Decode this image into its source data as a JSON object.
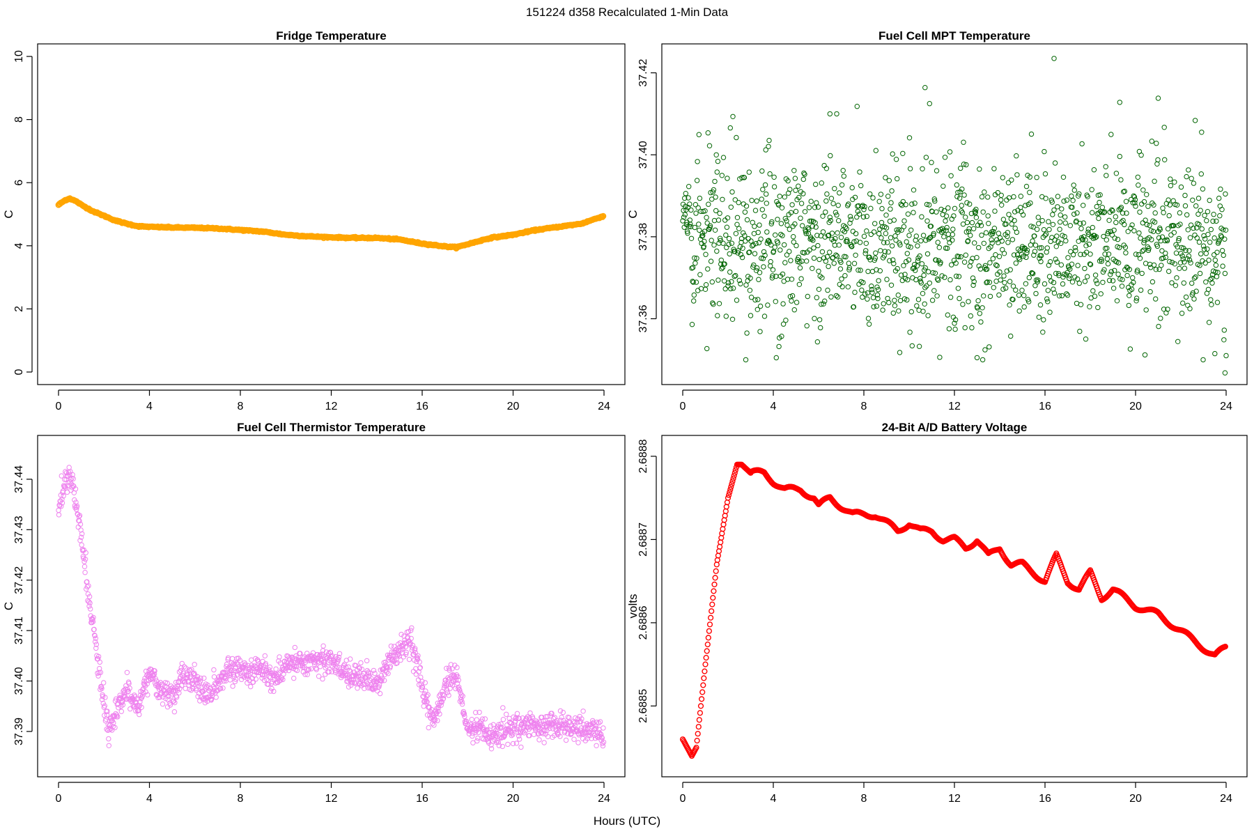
{
  "figure": {
    "suptitle": "151224   d358   Recalculated 1-Min Data",
    "shared_xlabel": "Hours (UTC)"
  },
  "chart_data": [
    {
      "type": "line",
      "title": "Fridge Temperature",
      "xlabel": "",
      "ylabel": "C",
      "xlim": [
        0,
        24
      ],
      "ylim": [
        0,
        10
      ],
      "xticks": [
        0,
        4,
        8,
        12,
        16,
        20,
        24
      ],
      "yticks": [
        0,
        2,
        4,
        6,
        8,
        10
      ],
      "color": "#FFA500",
      "series": [
        {
          "name": "Fridge Temperature",
          "x": [
            0,
            0.3,
            0.5,
            0.8,
            1,
            1.5,
            2,
            2.5,
            3,
            3.5,
            4,
            5,
            6,
            7,
            8,
            9,
            10,
            11,
            12,
            13,
            14,
            15,
            16,
            17,
            17.5,
            18,
            19,
            20,
            21,
            22,
            23,
            24
          ],
          "y": [
            5.3,
            5.45,
            5.5,
            5.4,
            5.3,
            5.1,
            4.95,
            4.8,
            4.7,
            4.62,
            4.6,
            4.58,
            4.57,
            4.55,
            4.5,
            4.45,
            4.35,
            4.3,
            4.27,
            4.25,
            4.25,
            4.2,
            4.07,
            3.98,
            3.95,
            4.05,
            4.25,
            4.35,
            4.5,
            4.6,
            4.7,
            4.95
          ]
        }
      ]
    },
    {
      "type": "scatter",
      "title": "Fuel Cell MPT Temperature",
      "xlabel": "",
      "ylabel": "C",
      "xlim": [
        0,
        24
      ],
      "ylim": [
        37.347,
        37.424
      ],
      "xticks": [
        0,
        4,
        8,
        12,
        16,
        20,
        24
      ],
      "yticks": [
        37.36,
        37.38,
        37.4,
        37.42
      ],
      "color": "#006400",
      "series": [
        {
          "name": "Fuel Cell MPT Temperature",
          "n_points": 1440,
          "x_range": [
            0,
            24
          ],
          "mean": 37.378,
          "spread": 0.012,
          "outliers": [
            [
              16.4,
              37.4235
            ],
            [
              21.0,
              37.4138
            ],
            [
              10.7,
              37.4164
            ],
            [
              10.9,
              37.4125
            ],
            [
              19.3,
              37.4128
            ],
            [
              6.5,
              37.41
            ],
            [
              6.8,
              37.41
            ],
            [
              23.95,
              37.3468
            ],
            [
              13.0,
              37.3505
            ],
            [
              24.0,
              37.351
            ]
          ]
        }
      ]
    },
    {
      "type": "scatter",
      "title": "Fuel Cell Thermistor Temperature",
      "xlabel": "",
      "ylabel": "C",
      "xlim": [
        0,
        24
      ],
      "ylim": [
        37.3835,
        37.4462
      ],
      "xticks": [
        0,
        4,
        8,
        12,
        16,
        20,
        24
      ],
      "yticks": [
        37.39,
        37.4,
        37.41,
        37.42,
        37.43,
        37.44
      ],
      "color": "#EE82EE",
      "series": [
        {
          "name": "Fuel Cell Thermistor Temperature",
          "n_points": 1440,
          "x": [
            0,
            0.3,
            0.5,
            0.8,
            1.0,
            1.3,
            1.6,
            1.9,
            2.2,
            2.5,
            3.0,
            3.5,
            4.0,
            4.5,
            5.0,
            5.5,
            6.0,
            6.5,
            7.0,
            7.5,
            8.0,
            8.5,
            9.0,
            9.5,
            10.0,
            10.5,
            11.0,
            11.5,
            12.0,
            12.5,
            13.0,
            13.5,
            14.0,
            14.5,
            15.0,
            15.5,
            16.0,
            16.5,
            17.0,
            17.5,
            18.0,
            18.5,
            19.0,
            19.5,
            20.0,
            21.0,
            22.0,
            23.0,
            24.0
          ],
          "y": [
            37.433,
            37.44,
            37.441,
            37.435,
            37.428,
            37.418,
            37.408,
            37.398,
            37.39,
            37.393,
            37.398,
            37.395,
            37.402,
            37.398,
            37.397,
            37.401,
            37.4,
            37.397,
            37.399,
            37.402,
            37.403,
            37.401,
            37.403,
            37.4,
            37.403,
            37.404,
            37.404,
            37.404,
            37.404,
            37.402,
            37.401,
            37.401,
            37.399,
            37.404,
            37.406,
            37.408,
            37.398,
            37.392,
            37.399,
            37.401,
            37.39,
            37.391,
            37.389,
            37.39,
            37.391,
            37.391,
            37.391,
            37.391,
            37.389
          ]
        }
      ]
    },
    {
      "type": "scatter",
      "title": "24-Bit A/D Battery Voltage",
      "xlabel": "",
      "ylabel": "volts",
      "xlim": [
        0,
        24
      ],
      "ylim": [
        2.68843,
        2.68881
      ],
      "xticks": [
        0,
        4,
        8,
        12,
        16,
        20,
        24
      ],
      "yticks": [
        2.6885,
        2.6886,
        2.6887,
        2.6888
      ],
      "color": "#FF0000",
      "series": [
        {
          "name": "24-Bit A/D Battery Voltage",
          "n_points": 1440,
          "x": [
            0,
            0.2,
            0.4,
            0.6,
            1.0,
            1.5,
            2.0,
            2.4,
            2.6,
            3.0,
            3.6,
            4.0,
            4.5,
            5.2,
            5.8,
            6.0,
            6.5,
            7.0,
            7.5,
            8.0,
            8.5,
            9.0,
            9.5,
            10.0,
            10.5,
            11.0,
            11.5,
            12.0,
            12.5,
            13.0,
            13.5,
            14.0,
            14.5,
            15.0,
            15.5,
            16.0,
            16.5,
            17.0,
            17.5,
            18.0,
            18.5,
            19.0,
            19.5,
            20.0,
            21.0,
            22.0,
            23.0,
            23.5,
            24.0
          ],
          "y": [
            2.68846,
            2.68845,
            2.68844,
            2.68845,
            2.68855,
            2.68867,
            2.68875,
            2.68879,
            2.68879,
            2.68878,
            2.68878,
            2.68877,
            2.68876,
            2.68876,
            2.68875,
            2.68874,
            2.68875,
            2.68874,
            2.68873,
            2.68873,
            2.68873,
            2.68872,
            2.68871,
            2.68872,
            2.68871,
            2.68871,
            2.6887,
            2.6887,
            2.68869,
            2.6887,
            2.68868,
            2.68869,
            2.68867,
            2.68867,
            2.68866,
            2.68865,
            2.68868,
            2.68865,
            2.68864,
            2.68866,
            2.68863,
            2.68864,
            2.68863,
            2.68862,
            2.68861,
            2.68859,
            2.68857,
            2.68856,
            2.68857
          ]
        }
      ]
    }
  ]
}
